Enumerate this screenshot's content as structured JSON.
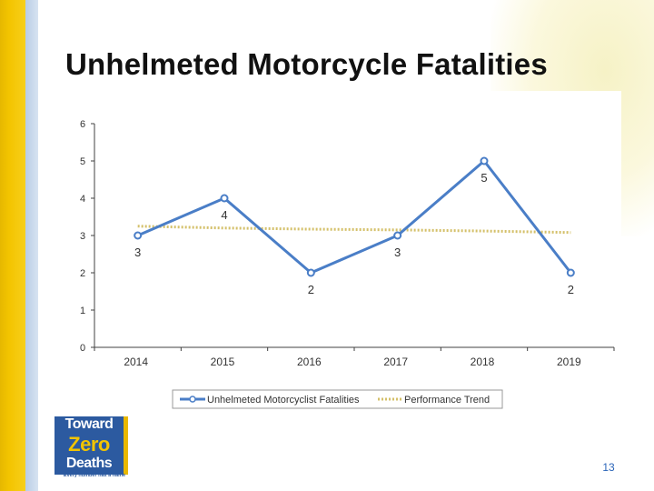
{
  "slide": {
    "title": "Unhelmeted Motorcycle Fatalities",
    "page_number": "13",
    "logo": {
      "line1": "Toward",
      "line2": "Zero",
      "line3": "Deaths",
      "tagline": "Every number has a name"
    }
  },
  "colors": {
    "series_line": "#4a7ec7",
    "trend_line": "#d4c06a",
    "axis": "#404040",
    "text": "#333333"
  },
  "chart_data": {
    "type": "line",
    "title": "",
    "xlabel": "",
    "ylabel": "",
    "categories": [
      "2014",
      "2015",
      "2016",
      "2017",
      "2018",
      "2019"
    ],
    "y_ticks": [
      "0",
      "1",
      "2",
      "3",
      "4",
      "5",
      "6"
    ],
    "ylim": [
      0,
      6
    ],
    "series": [
      {
        "name": "Unhelmeted Motorcyclist Fatalities",
        "values": [
          3,
          4,
          2,
          3,
          5,
          2
        ],
        "labels": [
          "3",
          "4",
          "2",
          "3",
          "5",
          "2"
        ],
        "style": "solid-markers"
      },
      {
        "name": "Performance Trend",
        "values": [
          3.25,
          3.2,
          3.17,
          3.15,
          3.12,
          3.08
        ],
        "style": "dotted"
      }
    ],
    "legend_position": "bottom-center",
    "grid": false
  }
}
